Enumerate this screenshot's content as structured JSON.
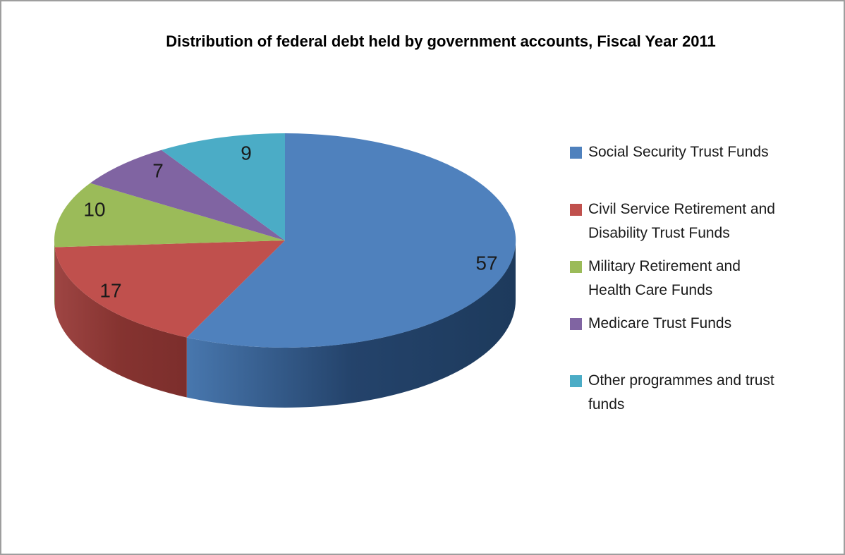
{
  "chart_data": {
    "type": "pie",
    "style": "3d",
    "title": "Distribution of federal debt held by government accounts, Fiscal Year 2011",
    "categories": [
      "Social Security Trust Funds",
      "Civil Service Retirement and Disability Trust Funds",
      "Military Retirement and Health Care Funds",
      "Medicare Trust Funds",
      "Other programmes and trust funds"
    ],
    "values": [
      57,
      17,
      10,
      7,
      9
    ],
    "unit": "percent",
    "start_angle_deg": 0,
    "direction": "clockwise",
    "colors": [
      "#4F81BD",
      "#C0504D",
      "#9BBB59",
      "#8064A2",
      "#4BACC6"
    ],
    "side_shades": [
      [
        "#4877AE",
        "#24436B",
        "#1D3A5C"
      ],
      [
        "#9E4543",
        "#853330",
        "#7C2E2C"
      ],
      [
        "#7A9440",
        "#667C35"
      ],
      [
        "#64507F",
        "#54426C"
      ],
      [
        "#3A8BA1",
        "#2F7488"
      ]
    ],
    "data_label_color": "#1A1A1A",
    "background": "#FFFFFF",
    "border_color": "#9E9E9E",
    "legend": {
      "position": "right",
      "text_color": "#1A1A1A",
      "items": [
        {
          "label": "Social Security Trust Funds",
          "lines": [
            "Social Security Trust Funds"
          ]
        },
        {
          "label": "Civil Service Retirement and Disability Trust Funds",
          "lines": [
            "Civil Service Retirement and",
            "Disability Trust Funds"
          ]
        },
        {
          "label": "Military Retirement and Health Care Funds",
          "lines": [
            "Military Retirement and",
            "Health Care Funds"
          ]
        },
        {
          "label": "Medicare Trust Funds",
          "lines": [
            "Medicare Trust Funds"
          ]
        },
        {
          "label": "Other programmes and trust funds",
          "lines": [
            "Other programmes and trust",
            "funds"
          ]
        }
      ]
    }
  }
}
